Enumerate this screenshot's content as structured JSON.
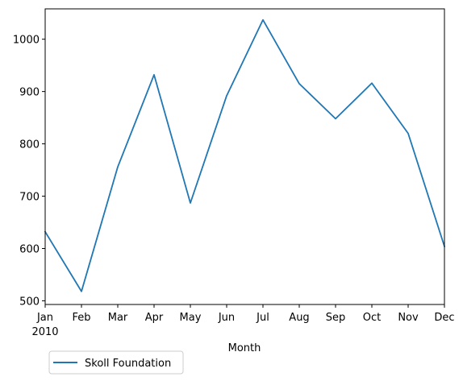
{
  "chart_data": {
    "type": "line",
    "categories": [
      "Jan",
      "Feb",
      "Mar",
      "Apr",
      "May",
      "Jun",
      "Jul",
      "Aug",
      "Sep",
      "Oct",
      "Nov",
      "Dec"
    ],
    "x_sublabel": "2010",
    "series": [
      {
        "name": "Skoll Foundation",
        "values": [
          632,
          518,
          756,
          932,
          687,
          892,
          1037,
          915,
          848,
          916,
          820,
          604
        ],
        "color": "#1f77b4"
      }
    ],
    "xlabel": "Month",
    "ylabel": "",
    "ylim": [
      493,
      1058
    ],
    "yticks": [
      500,
      600,
      700,
      800,
      900,
      1000
    ],
    "grid": false,
    "legend_placement": "bottom-left outside"
  }
}
